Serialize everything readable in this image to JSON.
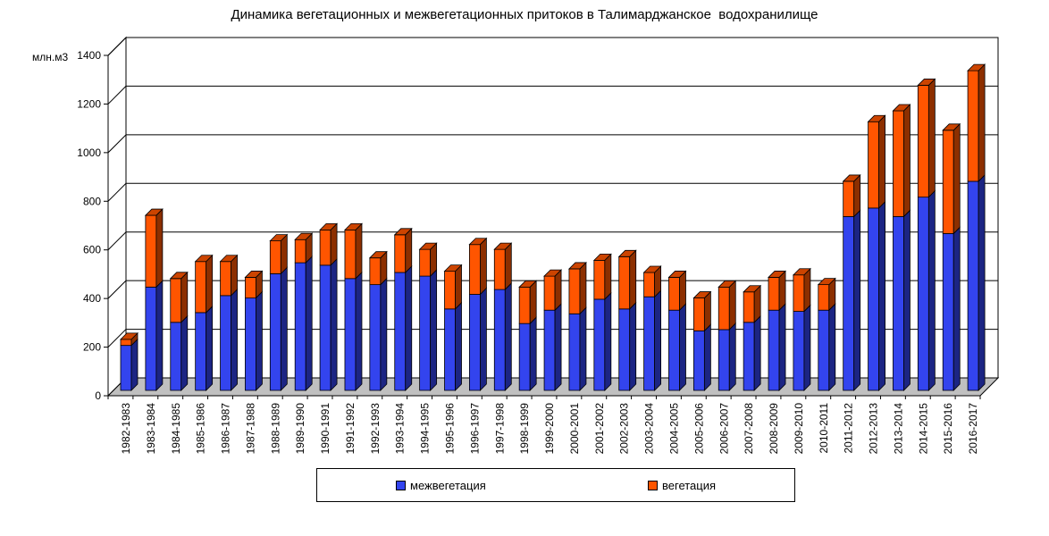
{
  "chart_data": {
    "type": "bar",
    "stacked": true,
    "title": "Динамика вегетационных и межвегетационных притоков в Талимарджанское  водохранилище",
    "ylabel": "млн.м3",
    "xlabel": "",
    "ylim": [
      0,
      1400
    ],
    "yticks": [
      "0",
      "200",
      "400",
      "600",
      "800",
      "1000",
      "1200",
      "1400"
    ],
    "grid": true,
    "legend_position": "bottom",
    "categories": [
      "1982-1983",
      "1983-1984",
      "1984-1985",
      "1985-1986",
      "1986-1987",
      "1987-1988",
      "1988-1989",
      "1989-1990",
      "1990-1991",
      "1991-1992",
      "1992-1993",
      "1993-1994",
      "1994-1995",
      "1995-1996",
      "1996-1997",
      "1997-1998",
      "1998-1999",
      "1999-2000",
      "2000-2001",
      "2001-2002",
      "2002-2003",
      "2003-2004",
      "2004-2005",
      "2005-2006",
      "2006-2007",
      "2007-2008",
      "2008-2009",
      "2009-2010",
      "2010-2011",
      "2011-2012",
      "2012-2013",
      "2013-2014",
      "2014-2015",
      "2015-2016",
      "2016-2017"
    ],
    "series": [
      {
        "name": "межвегетация",
        "color": "#3344ee",
        "values": [
          185,
          425,
          280,
          320,
          390,
          380,
          480,
          525,
          515,
          460,
          435,
          485,
          470,
          335,
          395,
          415,
          275,
          330,
          315,
          375,
          335,
          385,
          330,
          245,
          250,
          280,
          330,
          325,
          330,
          715,
          750,
          715,
          795,
          645,
          860
        ]
      },
      {
        "name": "вегетация",
        "color": "#ff5500",
        "values": [
          25,
          295,
          180,
          210,
          140,
          85,
          135,
          95,
          145,
          200,
          110,
          155,
          110,
          155,
          205,
          165,
          150,
          140,
          185,
          160,
          215,
          100,
          135,
          135,
          175,
          125,
          135,
          150,
          105,
          145,
          355,
          435,
          460,
          425,
          455
        ]
      }
    ]
  },
  "legend": {
    "items": [
      {
        "label": "межвегетация",
        "color": "#3344ee"
      },
      {
        "label": "вегетация",
        "color": "#ff5500"
      }
    ]
  }
}
